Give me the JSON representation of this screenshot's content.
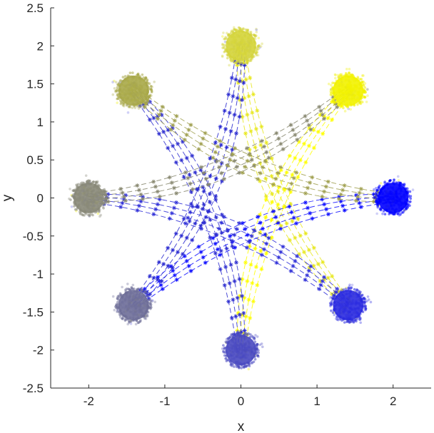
{
  "chart_data": {
    "type": "scatter",
    "title": "",
    "xlabel": "x",
    "ylabel": "y",
    "xlim": [
      -2.5,
      2.5
    ],
    "ylim": [
      -2.5,
      2.5
    ],
    "xticks": [
      -2,
      -1,
      0,
      1,
      2
    ],
    "yticks": [
      -2.5,
      -2,
      -1.5,
      -1,
      -0.5,
      0,
      0.5,
      1,
      1.5,
      2,
      2.5
    ],
    "grid": false,
    "legend": "none",
    "clusters": [
      {
        "x": 0.0,
        "y": 2.0,
        "color": "#d4d43a"
      },
      {
        "x": 1.41,
        "y": 1.41,
        "color": "#f2f200"
      },
      {
        "x": 2.0,
        "y": 0.0,
        "color": "#0000ff"
      },
      {
        "x": 1.41,
        "y": -1.41,
        "color": "#2a2ae0"
      },
      {
        "x": 0.0,
        "y": -2.0,
        "color": "#4848c0"
      },
      {
        "x": -1.41,
        "y": -1.41,
        "color": "#6e6e98"
      },
      {
        "x": -2.0,
        "y": 0.0,
        "color": "#888878"
      },
      {
        "x": -1.41,
        "y": 1.41,
        "color": "#a8a848"
      }
    ],
    "trajectories": [
      {
        "from": 0,
        "to": 3,
        "color": "#e8e820"
      },
      {
        "from": 1,
        "to": 4,
        "color": "#ffff00"
      },
      {
        "from": 2,
        "to": 5,
        "color": "#1010ff"
      },
      {
        "from": 3,
        "to": 6,
        "color": "#3030d8"
      },
      {
        "from": 4,
        "to": 7,
        "color": "#3030d0"
      },
      {
        "from": 5,
        "to": 0,
        "color": "#2a2ad0"
      },
      {
        "from": 6,
        "to": 1,
        "color": "#888870"
      },
      {
        "from": 7,
        "to": 2,
        "color": "#a0a050"
      }
    ]
  }
}
